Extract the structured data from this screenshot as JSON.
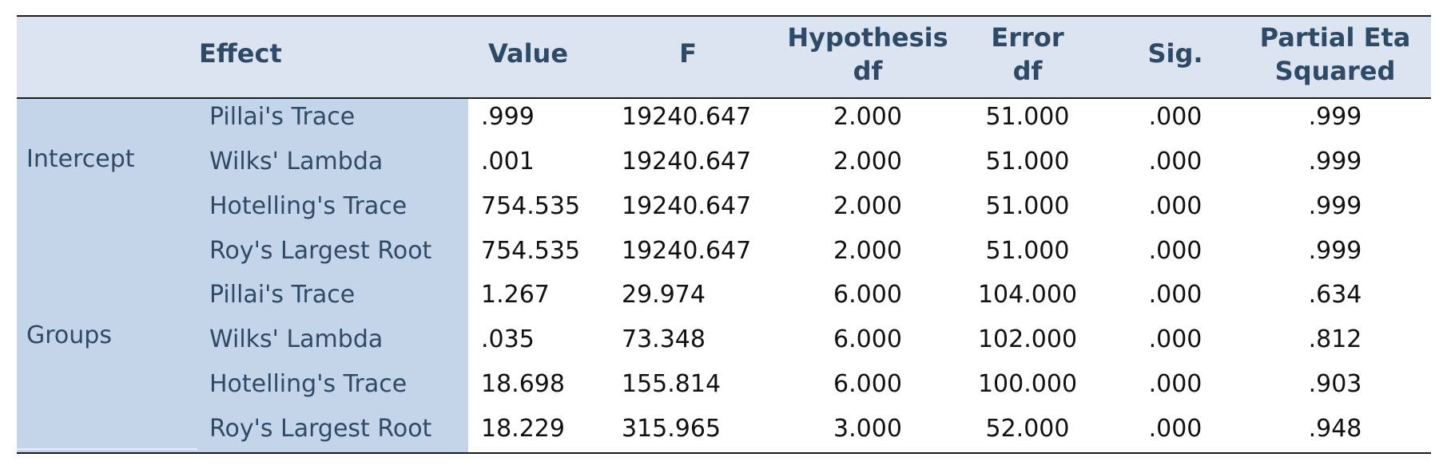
{
  "headers": {
    "effect": "Effect",
    "value": "Value",
    "f": "F",
    "hyp_df_1": "Hypothesis",
    "hyp_df_2": "df",
    "err_df_1": "Error",
    "err_df_2": "df",
    "sig": "Sig.",
    "eta_1": "Partial Eta",
    "eta_2": "Squared"
  },
  "groups": [
    "Intercept",
    "Groups"
  ],
  "rows": [
    {
      "test": "Pillai's Trace",
      "value": ".999",
      "f": "19240.647",
      "hyp": "2.000",
      "err": "51.000",
      "sig": ".000",
      "eta": ".999"
    },
    {
      "test": "Wilks' Lambda",
      "value": ".001",
      "f": "19240.647",
      "hyp": "2.000",
      "err": "51.000",
      "sig": ".000",
      "eta": ".999"
    },
    {
      "test": "Hotelling's Trace",
      "value": "754.535",
      "f": "19240.647",
      "hyp": "2.000",
      "err": "51.000",
      "sig": ".000",
      "eta": ".999"
    },
    {
      "test": "Roy's Largest Root",
      "value": "754.535",
      "f": "19240.647",
      "hyp": "2.000",
      "err": "51.000",
      "sig": ".000",
      "eta": ".999"
    },
    {
      "test": "Pillai's Trace",
      "value": "1.267",
      "f": "29.974",
      "hyp": "6.000",
      "err": "104.000",
      "sig": ".000",
      "eta": ".634"
    },
    {
      "test": "Wilks' Lambda",
      "value": ".035",
      "f": "73.348",
      "hyp": "6.000",
      "err": "102.000",
      "sig": ".000",
      "eta": ".812"
    },
    {
      "test": "Hotelling's Trace",
      "value": "18.698",
      "f": "155.814",
      "hyp": "6.000",
      "err": "100.000",
      "sig": ".000",
      "eta": ".903"
    },
    {
      "test": "Roy's Largest Root",
      "value": "18.229",
      "f": "315.965",
      "hyp": "3.000",
      "err": "52.000",
      "sig": ".000",
      "eta": ".948"
    }
  ]
}
